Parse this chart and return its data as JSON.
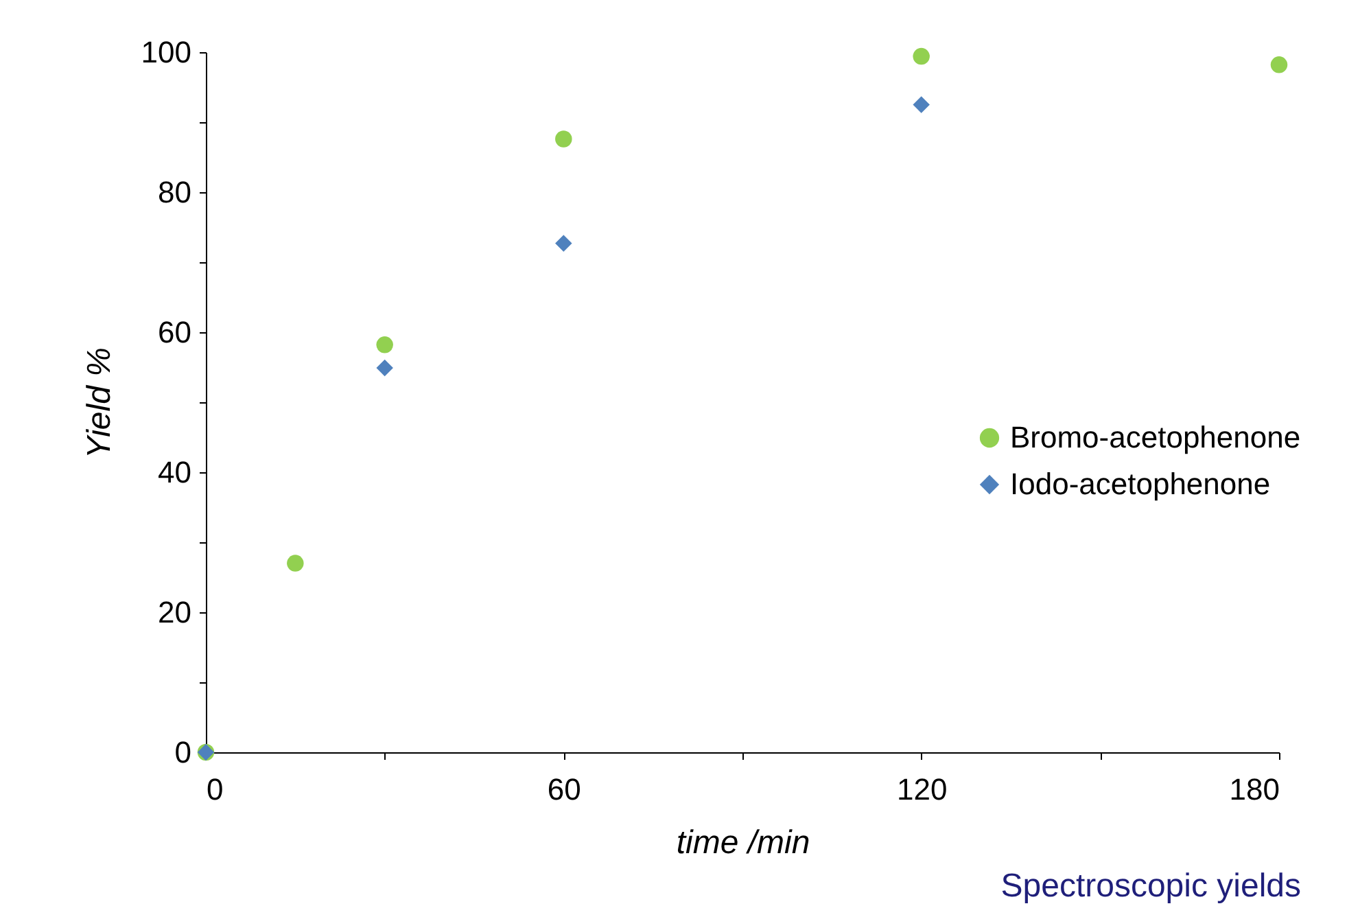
{
  "chart_data": {
    "type": "scatter",
    "xlabel": "time /min",
    "ylabel": "Yield %",
    "annotations": [
      "Spectroscopic yields"
    ],
    "xlim": [
      0,
      180
    ],
    "xticks": [
      0,
      {
        "value": 30,
        "label": null
      },
      60,
      {
        "value": 90,
        "label": null
      },
      120,
      {
        "value": 150,
        "label": null
      },
      180
    ],
    "ylim": [
      0,
      100
    ],
    "yticks": [
      0,
      {
        "value": 10,
        "label": null
      },
      20,
      {
        "value": 30,
        "label": null
      },
      40,
      {
        "value": 50,
        "label": null
      },
      60,
      {
        "value": 70,
        "label": null
      },
      80,
      {
        "value": 90,
        "label": null
      },
      100
    ],
    "grid": false,
    "legend": "right",
    "series": [
      {
        "name": "Bromo-acetophenone",
        "color": "#92d050",
        "marker": "circle",
        "x": [
          0,
          15,
          30,
          60,
          120,
          180
        ],
        "values": [
          0,
          27,
          58.2,
          87.6,
          99.4,
          98.2
        ]
      },
      {
        "name": "Iodo-acetophenone",
        "color": "#4f81bd",
        "marker": "diamond",
        "x": [
          0,
          30,
          60,
          120
        ],
        "values": [
          0,
          54.9,
          72.7,
          92.5
        ]
      }
    ]
  }
}
